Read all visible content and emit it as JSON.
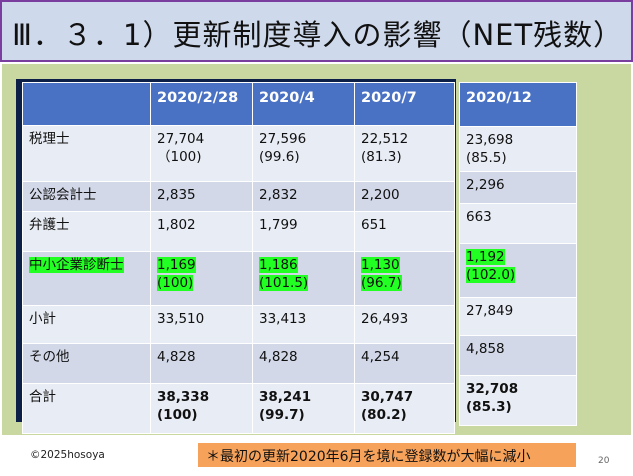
{
  "slide": {
    "title": "Ⅲ．３．1）更新制度導入の影響（NET残数）",
    "copyright": "©2025hosoya",
    "note": "＊最初の更新2020年6月を境に登録数が大幅に減小",
    "page_number": "20"
  },
  "table": {
    "headers": [
      "",
      "2020/2/28",
      "2020/4",
      "2020/7",
      "2020/12"
    ],
    "rows": [
      {
        "label": "税理士",
        "values": [
          [
            "27,704",
            "（100)"
          ],
          [
            "27,596",
            "(99.6)"
          ],
          [
            "22,512",
            "(81.3)"
          ],
          [
            "23,698",
            "(85.5)"
          ]
        ]
      },
      {
        "label": "公認会計士",
        "values": [
          [
            "2,835",
            ""
          ],
          [
            "2,832",
            ""
          ],
          [
            "2,200",
            ""
          ],
          [
            "2,296",
            ""
          ]
        ]
      },
      {
        "label": "弁護士",
        "values": [
          [
            "1,802",
            ""
          ],
          [
            "1,799",
            ""
          ],
          [
            "651",
            ""
          ],
          [
            "663",
            ""
          ]
        ]
      },
      {
        "label": "中小企業診断士",
        "values": [
          [
            "1,169",
            "(100)"
          ],
          [
            "1,186",
            "(101.5)"
          ],
          [
            "1,130",
            "(96.7)"
          ],
          [
            "1,192",
            "(102.0)"
          ]
        ]
      },
      {
        "label": "小計",
        "values": [
          [
            "33,510",
            ""
          ],
          [
            "33,413",
            ""
          ],
          [
            "26,493",
            ""
          ],
          [
            "27,849",
            ""
          ]
        ]
      },
      {
        "label": "その他",
        "values": [
          [
            "4,828",
            ""
          ],
          [
            "4,828",
            ""
          ],
          [
            "4,254",
            ""
          ],
          [
            "4,858",
            ""
          ]
        ]
      },
      {
        "label": "合計",
        "values": [
          [
            "38,338",
            "(100)"
          ],
          [
            "38,241",
            "(99.7)"
          ],
          [
            "30,747",
            "(80.2)"
          ],
          [
            "32,708",
            "(85.3)"
          ]
        ]
      }
    ]
  },
  "colors": {
    "title_border": "#7a3e9e",
    "title_bg": "#cfd9ec",
    "header_blue": "#4a72c4",
    "highlight_green": "#22ff22",
    "note_orange": "#f6a25a",
    "content_green": "#c8d8a0"
  }
}
